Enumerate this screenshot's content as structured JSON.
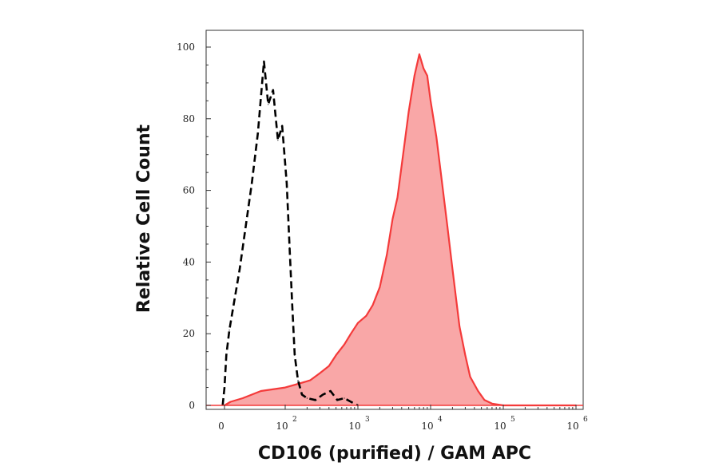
{
  "chart_data": {
    "type": "area",
    "title": "",
    "xlabel": "CD106 (purified) / GAM APC",
    "ylabel": "Relative Cell Count",
    "x_scale": "biexponential",
    "xlim": [
      -20,
      1000000
    ],
    "ylim": [
      0,
      100
    ],
    "y_ticks": [
      "0",
      "20",
      "40",
      "60",
      "80",
      "100"
    ],
    "x_ticks": [
      {
        "value": 0,
        "base": "0",
        "exp": ""
      },
      {
        "value": 100,
        "base": "10",
        "exp": "2"
      },
      {
        "value": 1000,
        "base": "10",
        "exp": "3"
      },
      {
        "value": 10000,
        "base": "10",
        "exp": "4"
      },
      {
        "value": 100000,
        "base": "10",
        "exp": "5"
      },
      {
        "value": 1000000,
        "base": "10",
        "exp": "6"
      }
    ],
    "grid": false,
    "legend": "none",
    "series": [
      {
        "style": "dashed-outline",
        "color": "#000000",
        "x": [
          -3,
          0,
          3,
          8,
          15,
          25,
          35,
          45,
          55,
          65,
          72,
          80,
          88,
          95,
          105,
          115,
          125,
          135,
          150,
          170,
          200,
          260,
          330,
          420,
          520,
          650,
          800,
          1000
        ],
        "values": [
          0,
          5,
          14,
          21,
          28,
          38,
          50,
          62,
          76,
          96,
          84,
          88,
          74,
          78,
          62,
          44,
          28,
          14,
          7,
          3,
          2,
          1.5,
          3,
          4,
          1.5,
          2,
          1,
          0
        ]
      },
      {
        "style": "filled",
        "color": "#f43a3a",
        "fill": "#f9a7a7",
        "x": [
          0,
          10,
          30,
          60,
          100,
          150,
          220,
          300,
          400,
          500,
          650,
          800,
          1000,
          1300,
          1600,
          2000,
          2500,
          3000,
          3500,
          4000,
          5000,
          6000,
          7000,
          8000,
          9000,
          10000,
          12000,
          14000,
          17000,
          20000,
          25000,
          30000,
          35000,
          45000,
          55000,
          70000,
          100000,
          200000,
          500000,
          1000000
        ],
        "values": [
          0,
          1,
          2,
          4,
          5,
          6,
          7,
          9,
          11,
          14,
          17,
          20,
          23,
          25,
          28,
          33,
          42,
          52,
          58,
          67,
          82,
          92,
          98,
          94,
          92,
          85,
          75,
          64,
          50,
          38,
          22,
          14,
          8,
          4,
          1.5,
          0.5,
          0,
          0,
          0,
          0
        ]
      }
    ]
  }
}
